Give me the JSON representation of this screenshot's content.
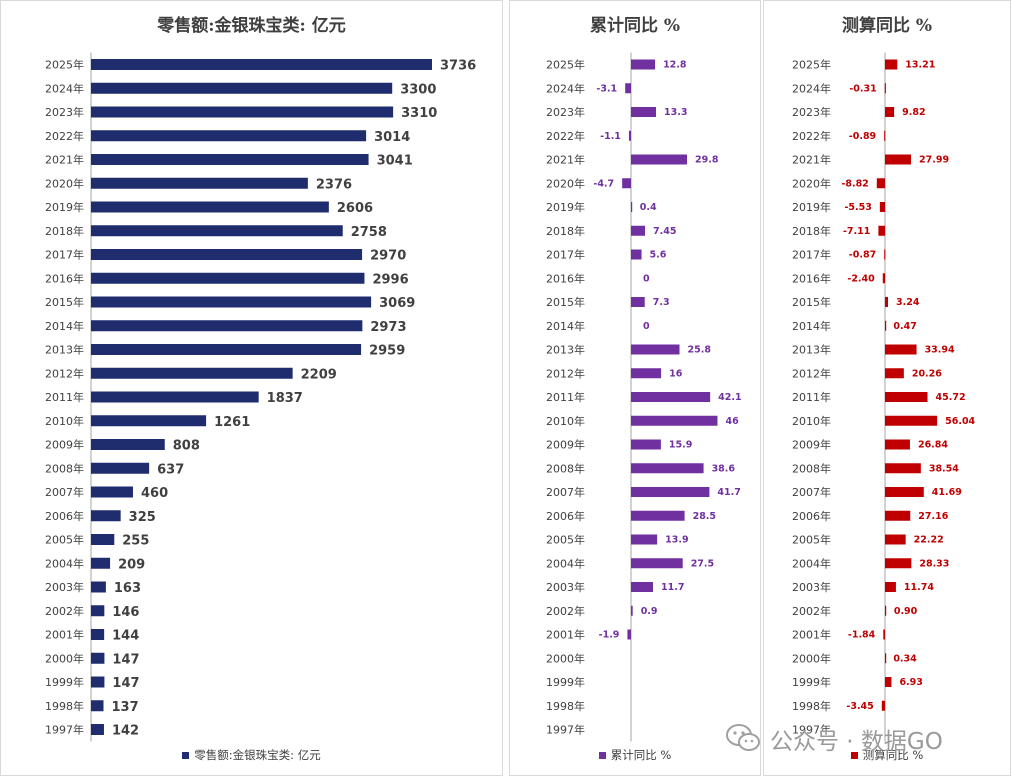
{
  "colors": {
    "navy": "#1f2d6e",
    "purple": "#7030a0",
    "red": "#c00000"
  },
  "chart_data": [
    {
      "type": "bar",
      "orientation": "horizontal",
      "title": "零售额:金银珠宝类: 亿元",
      "legend": "零售额:金银珠宝类: 亿元",
      "categories": [
        "2025年",
        "2024年",
        "2023年",
        "2022年",
        "2021年",
        "2020年",
        "2019年",
        "2018年",
        "2017年",
        "2016年",
        "2015年",
        "2014年",
        "2013年",
        "2012年",
        "2011年",
        "2010年",
        "2009年",
        "2008年",
        "2007年",
        "2006年",
        "2005年",
        "2004年",
        "2003年",
        "2002年",
        "2001年",
        "2000年",
        "1999年",
        "1998年",
        "1997年"
      ],
      "values": [
        3736,
        3300,
        3310,
        3014,
        3041,
        2376,
        2606,
        2758,
        2970,
        2996,
        3069,
        2973,
        2959,
        2209,
        1837,
        1261,
        808,
        637,
        460,
        325,
        255,
        209,
        163,
        146,
        144,
        147,
        147,
        137,
        142
      ],
      "labels": [
        "3736",
        "3300",
        "3310",
        "3014",
        "3041",
        "2376",
        "2606",
        "2758",
        "2970",
        "2996",
        "3069",
        "2973",
        "2959",
        "2209",
        "1837",
        "1261",
        "808",
        "637",
        "460",
        "325",
        "255",
        "209",
        "163",
        "146",
        "144",
        "147",
        "147",
        "137",
        "142"
      ],
      "xlim": [
        0,
        3736
      ]
    },
    {
      "type": "bar",
      "orientation": "horizontal",
      "title": "累计同比 %",
      "legend": "累计同比 %",
      "categories": [
        "2025年",
        "2024年",
        "2023年",
        "2022年",
        "2021年",
        "2020年",
        "2019年",
        "2018年",
        "2017年",
        "2016年",
        "2015年",
        "2014年",
        "2013年",
        "2012年",
        "2011年",
        "2010年",
        "2009年",
        "2008年",
        "2007年",
        "2006年",
        "2005年",
        "2004年",
        "2003年",
        "2002年",
        "2001年",
        "2000年",
        "1999年",
        "1998年",
        "1997年"
      ],
      "values": [
        12.8,
        -3.1,
        13.3,
        -1.1,
        29.8,
        -4.7,
        0.4,
        7.45,
        5.6,
        0,
        7.3,
        0,
        25.8,
        16,
        42.1,
        46,
        15.9,
        38.6,
        41.7,
        28.5,
        13.9,
        27.5,
        11.7,
        0.9,
        -1.9,
        null,
        null,
        null,
        null
      ],
      "labels": [
        "12.8",
        "-3.1",
        "13.3",
        "-1.1",
        "29.8",
        "-4.7",
        "0.4",
        "7.45",
        "5.6",
        "0",
        "7.3",
        "0",
        "25.8",
        "16",
        "42.1",
        "46",
        "15.9",
        "38.6",
        "41.7",
        "28.5",
        "13.9",
        "27.5",
        "11.7",
        "0.9",
        "-1.9",
        "",
        "",
        "",
        ""
      ]
    },
    {
      "type": "bar",
      "orientation": "horizontal",
      "title": "测算同比 %",
      "legend": "测算同比 %",
      "categories": [
        "2025年",
        "2024年",
        "2023年",
        "2022年",
        "2021年",
        "2020年",
        "2019年",
        "2018年",
        "2017年",
        "2016年",
        "2015年",
        "2014年",
        "2013年",
        "2012年",
        "2011年",
        "2010年",
        "2009年",
        "2008年",
        "2007年",
        "2006年",
        "2005年",
        "2004年",
        "2003年",
        "2002年",
        "2001年",
        "2000年",
        "1999年",
        "1998年",
        "1997年"
      ],
      "values": [
        13.21,
        -0.31,
        9.82,
        -0.89,
        27.99,
        -8.82,
        -5.53,
        -7.11,
        -0.87,
        -2.4,
        3.24,
        0.47,
        33.94,
        20.26,
        45.72,
        56.04,
        26.84,
        38.54,
        41.69,
        27.16,
        22.22,
        28.33,
        11.74,
        0.9,
        -1.84,
        0.34,
        6.93,
        -3.45,
        null
      ],
      "labels": [
        "13.21",
        "-0.31",
        "9.82",
        "-0.89",
        "27.99",
        "-8.82",
        "-5.53",
        "-7.11",
        "-0.87",
        "-2.40",
        "3.24",
        "0.47",
        "33.94",
        "20.26",
        "45.72",
        "56.04",
        "26.84",
        "38.54",
        "41.69",
        "27.16",
        "22.22",
        "28.33",
        "11.74",
        "0.90",
        "-1.84",
        "0.34",
        "6.93",
        "-3.45",
        ""
      ]
    }
  ],
  "watermark": {
    "text": "公众号 · 数据GO"
  }
}
